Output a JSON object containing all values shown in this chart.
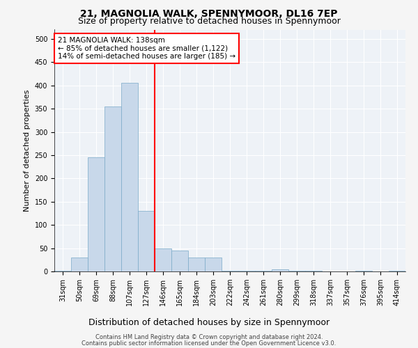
{
  "title": "21, MAGNOLIA WALK, SPENNYMOOR, DL16 7EP",
  "subtitle": "Size of property relative to detached houses in Spennymoor",
  "xlabel": "Distribution of detached houses by size in Spennymoor",
  "ylabel": "Number of detached properties",
  "footer1": "Contains HM Land Registry data © Crown copyright and database right 2024.",
  "footer2": "Contains public sector information licensed under the Open Government Licence v3.0.",
  "categories": [
    "31sqm",
    "50sqm",
    "69sqm",
    "88sqm",
    "107sqm",
    "127sqm",
    "146sqm",
    "165sqm",
    "184sqm",
    "203sqm",
    "222sqm",
    "242sqm",
    "261sqm",
    "280sqm",
    "299sqm",
    "318sqm",
    "337sqm",
    "357sqm",
    "376sqm",
    "395sqm",
    "414sqm"
  ],
  "values": [
    2,
    30,
    245,
    355,
    405,
    130,
    50,
    45,
    30,
    30,
    2,
    2,
    2,
    4,
    2,
    2,
    0,
    0,
    2,
    0,
    2
  ],
  "bar_color": "#c8d8ea",
  "bar_edge_color": "#7aaac8",
  "red_line_x": 5.5,
  "property_label": "21 MAGNOLIA WALK: 138sqm",
  "annotation_line1": "← 85% of detached houses are smaller (1,122)",
  "annotation_line2": "14% of semi-detached houses are larger (185) →",
  "ylim": [
    0,
    520
  ],
  "yticks": [
    0,
    50,
    100,
    150,
    200,
    250,
    300,
    350,
    400,
    450,
    500
  ],
  "background_color": "#eef2f7",
  "grid_color": "#ffffff",
  "fig_facecolor": "#f5f5f5",
  "title_fontsize": 10,
  "subtitle_fontsize": 9,
  "xlabel_fontsize": 9,
  "ylabel_fontsize": 8,
  "tick_fontsize": 7,
  "annotation_fontsize": 7.5,
  "footer_fontsize": 6
}
